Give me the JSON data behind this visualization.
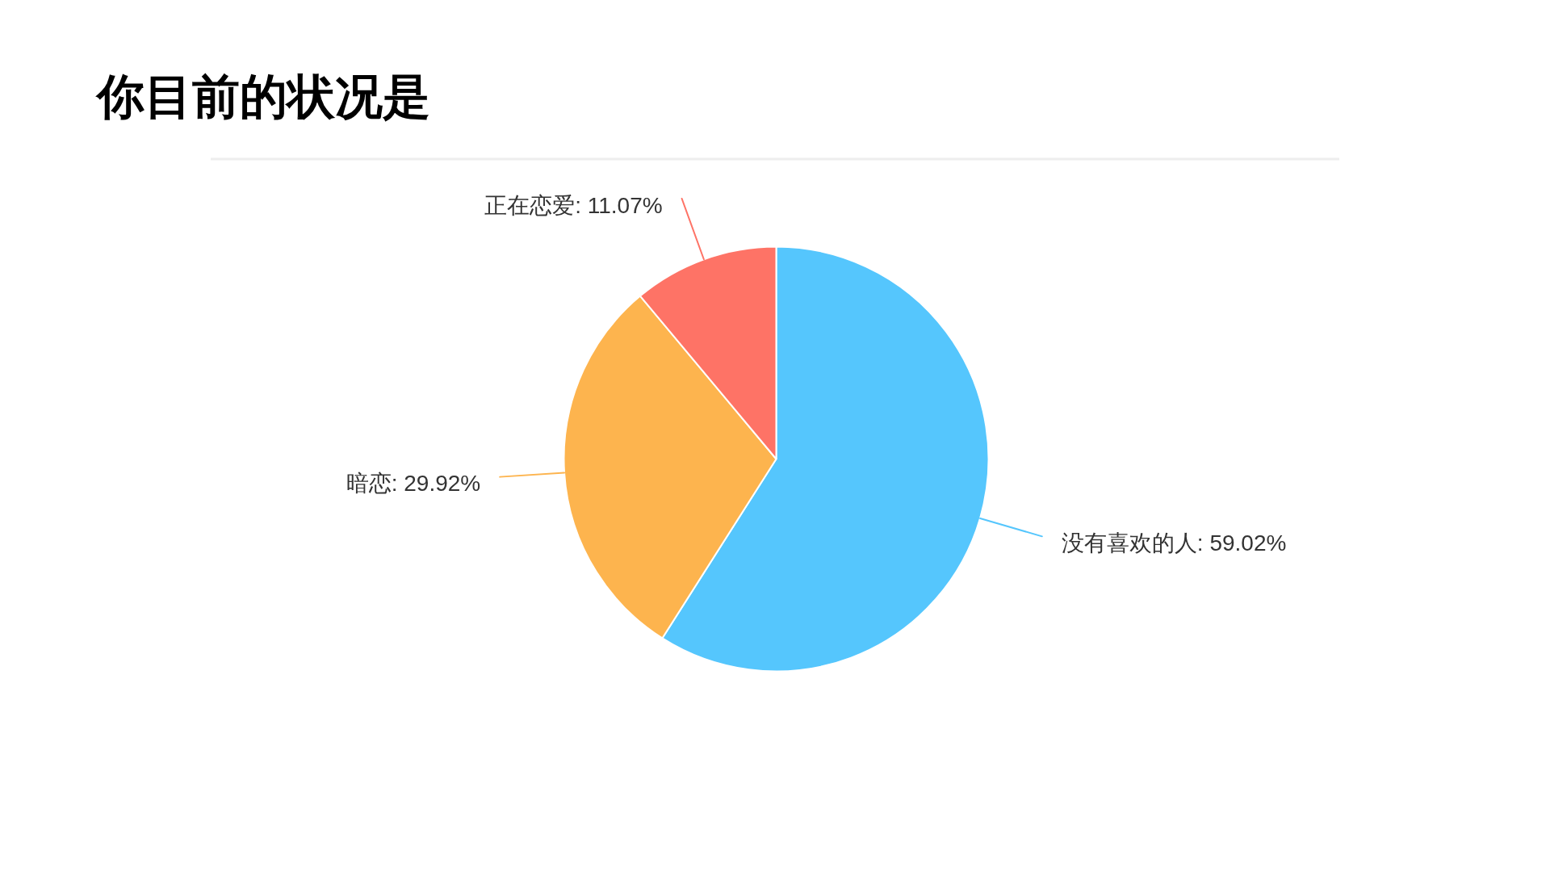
{
  "chart_data": {
    "type": "pie",
    "title": "你目前的状况是",
    "categories": [
      "没有喜欢的人",
      "暗恋",
      "正在恋爱"
    ],
    "values": [
      59.02,
      29.92,
      11.07
    ],
    "colors": [
      "#55c6fd",
      "#fdb44e",
      "#fe7366"
    ],
    "value_labels": [
      "59.02%",
      "29.92%",
      "11.07%"
    ]
  }
}
